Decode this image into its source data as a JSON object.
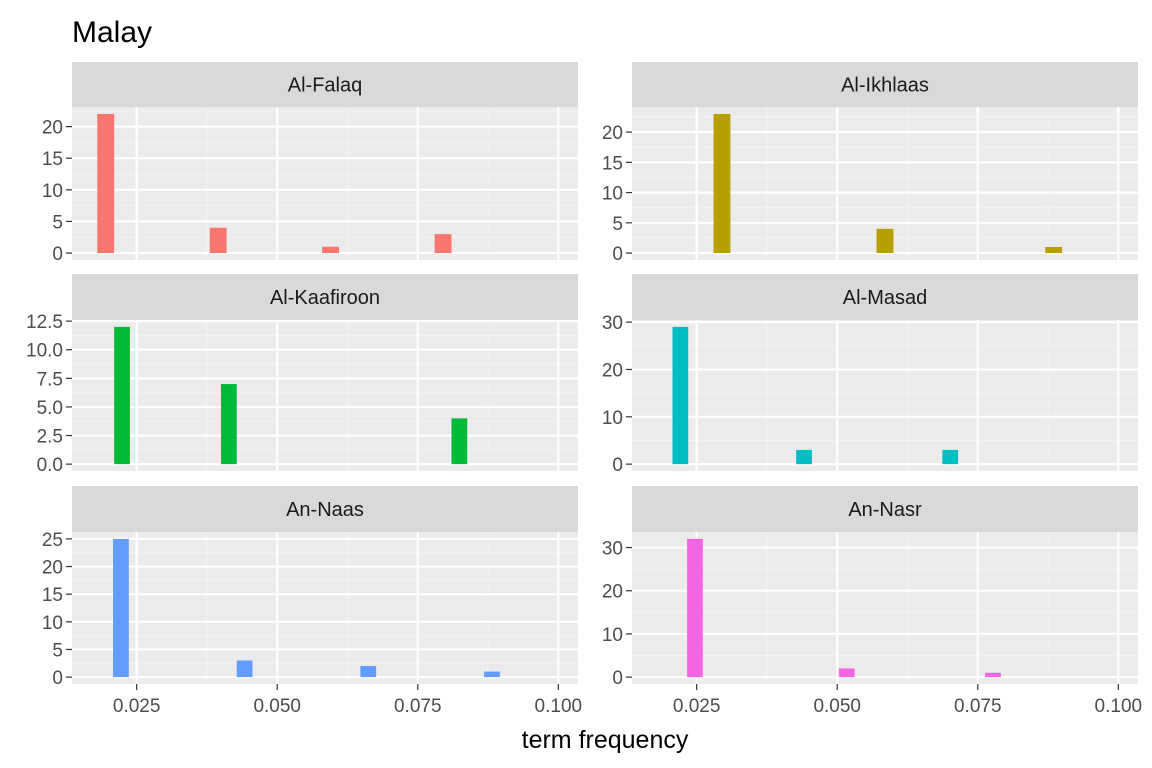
{
  "chart_data": {
    "type": "bar",
    "title": "Malay",
    "xlabel": "term frequency",
    "ylabel": "",
    "xlim": [
      0.0135,
      0.1035
    ],
    "xticks": [
      0.025,
      0.05,
      0.075,
      0.1
    ],
    "xtick_labels": [
      "0.025",
      "0.050",
      "0.075",
      "0.100"
    ],
    "grid": true,
    "legend": "none",
    "panels": [
      {
        "name": "Al-Falaq",
        "color": "#F8766D",
        "ylim": [
          -1.1,
          23.1
        ],
        "yticks": [
          0,
          5,
          10,
          15,
          20
        ],
        "ytick_labels": [
          "0",
          "5",
          "10",
          "15",
          "20"
        ],
        "bar_width": 0.003,
        "x": [
          0.0195,
          0.0395,
          0.0595,
          0.0795
        ],
        "values": [
          22,
          4,
          1,
          3
        ]
      },
      {
        "name": "Al-Ikhlaas",
        "color": "#B79F00",
        "ylim": [
          -1.15,
          24.15
        ],
        "yticks": [
          0,
          5,
          10,
          15,
          20
        ],
        "ytick_labels": [
          "0",
          "5",
          "10",
          "15",
          "20"
        ],
        "bar_width": 0.003,
        "x": [
          0.0295,
          0.0585,
          0.0885
        ],
        "values": [
          23,
          4,
          1
        ]
      },
      {
        "name": "Al-Kaafiroon",
        "color": "#00BA38",
        "ylim": [
          -0.6,
          12.6
        ],
        "yticks": [
          0,
          2.5,
          5,
          7.5,
          10,
          12.5
        ],
        "ytick_labels": [
          "0.0",
          "2.5",
          "5.0",
          "7.5",
          "10.0",
          "12.5"
        ],
        "bar_width": 0.0028,
        "x": [
          0.0224,
          0.0414,
          0.0824
        ],
        "values": [
          12,
          7,
          4
        ]
      },
      {
        "name": "Al-Masad",
        "color": "#00BFC4",
        "ylim": [
          -1.45,
          30.45
        ],
        "yticks": [
          0,
          10,
          20,
          30
        ],
        "ytick_labels": [
          "0",
          "10",
          "20",
          "30"
        ],
        "bar_width": 0.0028,
        "x": [
          0.0221,
          0.0441,
          0.0701
        ],
        "values": [
          29,
          3,
          3
        ]
      },
      {
        "name": "An-Naas",
        "color": "#619CFF",
        "ylim": [
          -1.25,
          26.25
        ],
        "yticks": [
          0,
          5,
          10,
          15,
          20,
          25
        ],
        "ytick_labels": [
          "0",
          "5",
          "10",
          "15",
          "20",
          "25"
        ],
        "bar_width": 0.0028,
        "x": [
          0.0222,
          0.0442,
          0.0662,
          0.0882
        ],
        "values": [
          25,
          3,
          2,
          1
        ]
      },
      {
        "name": "An-Nasr",
        "color": "#F564E3",
        "ylim": [
          -1.6,
          33.6
        ],
        "yticks": [
          0,
          10,
          20,
          30
        ],
        "ytick_labels": [
          "0",
          "10",
          "20",
          "30"
        ],
        "bar_width": 0.0028,
        "x": [
          0.0247,
          0.0517,
          0.0777
        ],
        "values": [
          32,
          2,
          1
        ]
      }
    ]
  }
}
